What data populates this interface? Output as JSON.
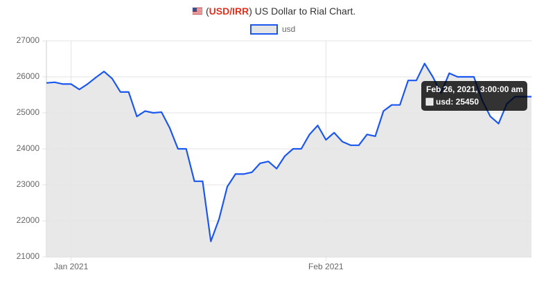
{
  "chart_data": {
    "type": "line",
    "title": {
      "open": "(",
      "symbol": "USD/IRR",
      "rest": ") US Dollar to Rial Chart."
    },
    "symbol_color": "#e0301e",
    "categories": [
      null,
      null,
      null,
      "Jan 2021",
      null,
      null,
      null,
      null,
      null,
      null,
      null,
      null,
      null,
      null,
      null,
      null,
      null,
      null,
      null,
      null,
      null,
      null,
      null,
      null,
      null,
      null,
      null,
      null,
      null,
      null,
      null,
      null,
      null,
      null,
      "Feb 2021",
      null,
      null,
      null,
      null,
      null,
      null,
      null,
      null,
      null,
      null,
      null,
      null,
      null,
      null,
      null,
      null,
      null,
      null,
      null,
      null,
      null,
      null,
      null,
      null,
      null
    ],
    "series": [
      {
        "name": "usd",
        "color": "#1a56f0",
        "fill": "#e5e5e5",
        "values": [
          25830,
          25850,
          25800,
          25800,
          25650,
          25800,
          25980,
          26150,
          25950,
          25580,
          25580,
          24900,
          25050,
          25000,
          25020,
          24580,
          24000,
          24000,
          23100,
          23100,
          21430,
          22050,
          22950,
          23300,
          23300,
          23350,
          23600,
          23650,
          23450,
          23800,
          24000,
          24000,
          24400,
          24650,
          24250,
          24450,
          24200,
          24100,
          24100,
          24400,
          24350,
          25050,
          25220,
          25220,
          25900,
          25900,
          26370,
          26000,
          25550,
          26100,
          26000,
          26000,
          26000,
          25350,
          24900,
          24700,
          25250,
          25450,
          25450,
          25450
        ]
      }
    ],
    "ylim": [
      21000,
      27000
    ],
    "yticks": [
      21000,
      22000,
      23000,
      24000,
      25000,
      26000,
      27000
    ],
    "grid": true,
    "tooltip": {
      "title": "Feb 26, 2021, 3:00:00 am",
      "label": "usd: 25450"
    }
  }
}
